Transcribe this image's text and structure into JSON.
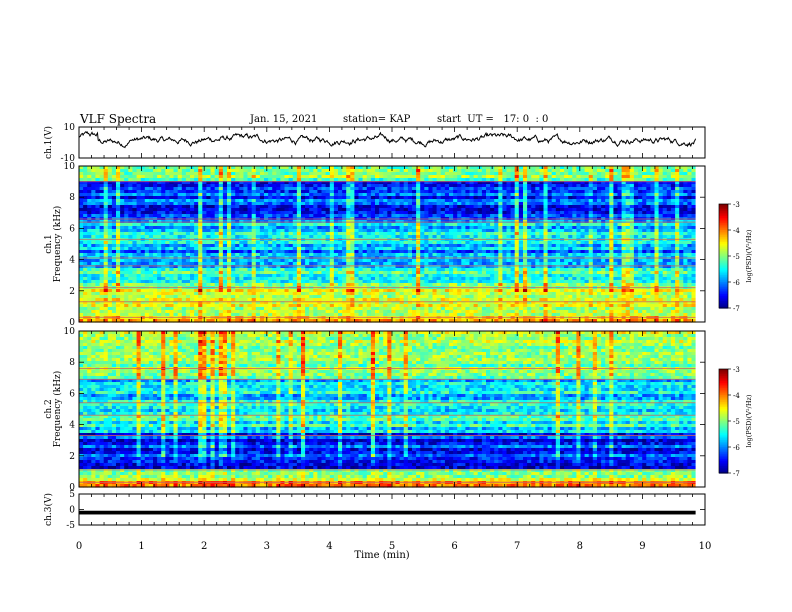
{
  "header": {
    "title": "VLF Spectra",
    "date": "Jan. 15, 2021",
    "station": "station= KAP",
    "start": "start  UT =   17: 0  : 0"
  },
  "chart_data": [
    {
      "type": "line",
      "panel": "ch1-waveform",
      "ylabel": "ch.1(V)",
      "ylim": [
        -10,
        10
      ],
      "yticks": [
        "10",
        "-10"
      ],
      "xlim": [
        0,
        10
      ],
      "note_values": "noisy waveform, roughly -3 to 6 V",
      "color": "#000000"
    },
    {
      "type": "heatmap",
      "panel": "ch1-spectrogram",
      "ylabel": "ch.1  Frequency (kHz)",
      "ylim": [
        0,
        10
      ],
      "yticks": [
        "0",
        "2",
        "4",
        "6",
        "8",
        "10"
      ],
      "xlim": [
        0,
        9.85
      ],
      "colorbar": {
        "label": "log(PSD)(V²/Hz)",
        "range": [
          -7,
          -3
        ],
        "ticks": [
          "-3",
          "-4",
          "-5",
          "-6",
          "-7"
        ]
      },
      "profile": [
        {
          "f_lo": 0,
          "f_hi": 0.3,
          "level": -4.3
        },
        {
          "f_lo": 0.3,
          "f_hi": 2.2,
          "level": -4.8
        },
        {
          "f_lo": 2.2,
          "f_hi": 3.5,
          "level": -5.3
        },
        {
          "f_lo": 3.5,
          "f_hi": 5.0,
          "level": -5.9
        },
        {
          "f_lo": 5.0,
          "f_hi": 6.5,
          "level": -5.6
        },
        {
          "f_lo": 6.5,
          "f_hi": 9.0,
          "level": -6.3
        },
        {
          "f_lo": 9.0,
          "f_hi": 10.0,
          "level": -5.2
        }
      ]
    },
    {
      "type": "heatmap",
      "panel": "ch2-spectrogram",
      "ylabel": "ch.2  Frequency (kHz)",
      "ylim": [
        0,
        10
      ],
      "yticks": [
        "0",
        "2",
        "4",
        "6",
        "8",
        "10"
      ],
      "xlim": [
        0,
        9.85
      ],
      "colorbar": {
        "label": "log(PSD)(V²/Hz)",
        "range": [
          -7,
          -3
        ],
        "ticks": [
          "-3",
          "-4",
          "-5",
          "-6",
          "-7"
        ]
      },
      "profile": [
        {
          "f_lo": 0,
          "f_hi": 0.3,
          "level": -4.2
        },
        {
          "f_lo": 0.3,
          "f_hi": 1.2,
          "level": -5.0
        },
        {
          "f_lo": 1.2,
          "f_hi": 3.5,
          "level": -6.4
        },
        {
          "f_lo": 3.5,
          "f_hi": 5.5,
          "level": -5.5
        },
        {
          "f_lo": 5.5,
          "f_hi": 7.0,
          "level": -5.6
        },
        {
          "f_lo": 7.0,
          "f_hi": 10.0,
          "level": -4.9
        }
      ]
    },
    {
      "type": "line",
      "panel": "ch3-waveform",
      "ylabel": "ch.3(V)",
      "ylim": [
        -5,
        5
      ],
      "yticks": [
        "5",
        "0",
        "-5"
      ],
      "xlim": [
        0,
        10
      ],
      "note_values": "dense signal near -1 V",
      "color": "#000000"
    }
  ],
  "xaxis": {
    "label": "Time (min)",
    "ticks": [
      "0",
      "1",
      "2",
      "3",
      "4",
      "5",
      "6",
      "7",
      "8",
      "9",
      "10"
    ]
  }
}
